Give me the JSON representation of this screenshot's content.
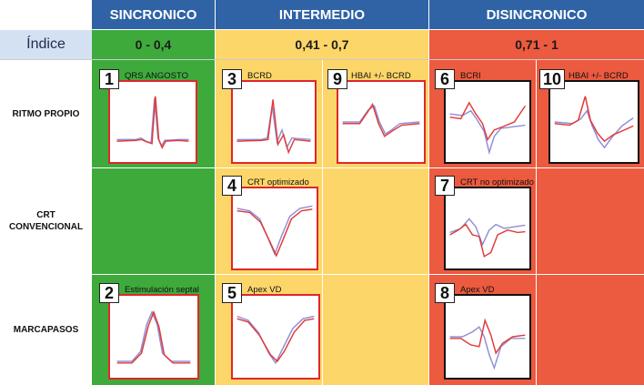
{
  "header": {
    "sincronico": "SINCRONICO",
    "intermedio": "INTERMEDIO",
    "disincronico": "DISINCRONICO"
  },
  "index_row": {
    "label": "Índice",
    "sincronico_range": "0 - 0,4",
    "intermedio_range": "0,41 - 0,7",
    "disincronico_range": "0,71 - 1"
  },
  "rows": {
    "ritmo_propio": "RITMO PROPIO",
    "crt_line1": "CRT",
    "crt_line2": "CONVENCIONAL",
    "marcapasos": "MARCAPASOS"
  },
  "panels": [
    {
      "number": "1",
      "title": "QRS ANGOSTO"
    },
    {
      "number": "2",
      "title": "Estimulación septal"
    },
    {
      "number": "3",
      "title": "BCRD"
    },
    {
      "number": "9",
      "title": "HBAI +/- BCRD"
    },
    {
      "number": "4",
      "title": "CRT optimizado"
    },
    {
      "number": "5",
      "title": "Apex VD"
    },
    {
      "number": "6",
      "title": "BCRI"
    },
    {
      "number": "10",
      "title": "HBAI +/- BCRD"
    },
    {
      "number": "7",
      "title": "CRT no optimizado"
    },
    {
      "number": "8",
      "title": "Apex VD"
    }
  ],
  "colors": {
    "header_blue": "#2f63a5",
    "index_bg": "#d4e1f2",
    "sincronico_green": "#3faa3c",
    "intermedio_yellow": "#fdd66a",
    "disincronico_red": "#ec5a3f",
    "trace_red": "#e23a3a",
    "trace_blue": "#8f8fd6"
  }
}
